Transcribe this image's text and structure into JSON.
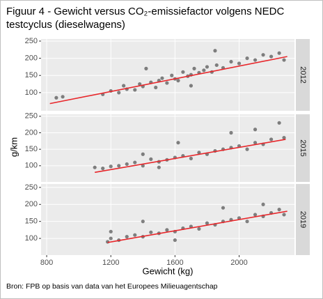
{
  "title": "Figuur 4 - Gewicht versus CO₂-emissiefactor volgens NEDC testcyclus (dieselwagens)",
  "xlabel": "Gewicht (kg)",
  "ylabel": "g/km",
  "source": "Bron: FPB op basis van data van het Europees Milieuagentschap",
  "chart_data": [
    {
      "type": "scatter",
      "facet": "2012",
      "color": "#333333",
      "trend_color": "#e8262a",
      "xlim": [
        765,
        2345
      ],
      "ylim": [
        47,
        256
      ],
      "yticks": [
        100,
        150,
        200,
        250
      ],
      "x": [
        860,
        900,
        1150,
        1200,
        1250,
        1280,
        1300,
        1350,
        1380,
        1400,
        1450,
        1480,
        1500,
        1520,
        1550,
        1580,
        1600,
        1620,
        1650,
        1680,
        1700,
        1720,
        1750,
        1780,
        1800,
        1830,
        1860,
        1900,
        1950,
        2000,
        2050,
        2100,
        2150,
        2200,
        2250,
        2280,
        1850,
        1420,
        1700
      ],
      "y": [
        85,
        88,
        95,
        105,
        100,
        120,
        110,
        108,
        125,
        118,
        130,
        115,
        135,
        142,
        128,
        150,
        140,
        135,
        160,
        148,
        152,
        170,
        158,
        165,
        175,
        160,
        180,
        172,
        190,
        185,
        200,
        195,
        210,
        205,
        215,
        195,
        222,
        170,
        120
      ],
      "trend": {
        "x": [
          820,
          2300
        ],
        "y": [
          68,
          205
        ]
      }
    },
    {
      "type": "scatter",
      "facet": "2015",
      "color": "#333333",
      "trend_color": "#e8262a",
      "xlim": [
        765,
        2345
      ],
      "ylim": [
        51,
        256
      ],
      "yticks": [
        100,
        150,
        200,
        250
      ],
      "x": [
        1100,
        1150,
        1200,
        1250,
        1300,
        1350,
        1400,
        1450,
        1500,
        1550,
        1600,
        1650,
        1700,
        1750,
        1800,
        1850,
        1900,
        1950,
        2000,
        2050,
        2100,
        2150,
        2200,
        2250,
        2280,
        1620,
        1500,
        1400,
        1950,
        2100
      ],
      "y": [
        95,
        92,
        98,
        100,
        105,
        110,
        100,
        120,
        112,
        118,
        125,
        130,
        122,
        140,
        135,
        145,
        150,
        155,
        160,
        150,
        170,
        165,
        180,
        230,
        185,
        170,
        95,
        135,
        200,
        210
      ],
      "trend": {
        "x": [
          1100,
          2290
        ],
        "y": [
          80,
          180
        ]
      }
    },
    {
      "type": "scatter",
      "facet": "2019",
      "color": "#333333",
      "trend_color": "#e8262a",
      "xlim": [
        765,
        2345
      ],
      "ylim": [
        51,
        260
      ],
      "yticks": [
        100,
        150,
        200,
        250
      ],
      "xticks": [
        800,
        1200,
        1600,
        2000
      ],
      "x": [
        1180,
        1200,
        1250,
        1300,
        1350,
        1400,
        1450,
        1500,
        1550,
        1600,
        1650,
        1700,
        1750,
        1800,
        1850,
        1900,
        1950,
        2000,
        2050,
        2100,
        2150,
        2200,
        2250,
        2280,
        1400,
        1600,
        1900,
        2150,
        1200
      ],
      "y": [
        90,
        100,
        95,
        105,
        110,
        105,
        118,
        115,
        125,
        120,
        130,
        135,
        128,
        145,
        140,
        150,
        155,
        160,
        150,
        170,
        165,
        175,
        185,
        170,
        150,
        95,
        190,
        200,
        120
      ],
      "trend": {
        "x": [
          1180,
          2300
        ],
        "y": [
          88,
          180
        ]
      }
    }
  ]
}
